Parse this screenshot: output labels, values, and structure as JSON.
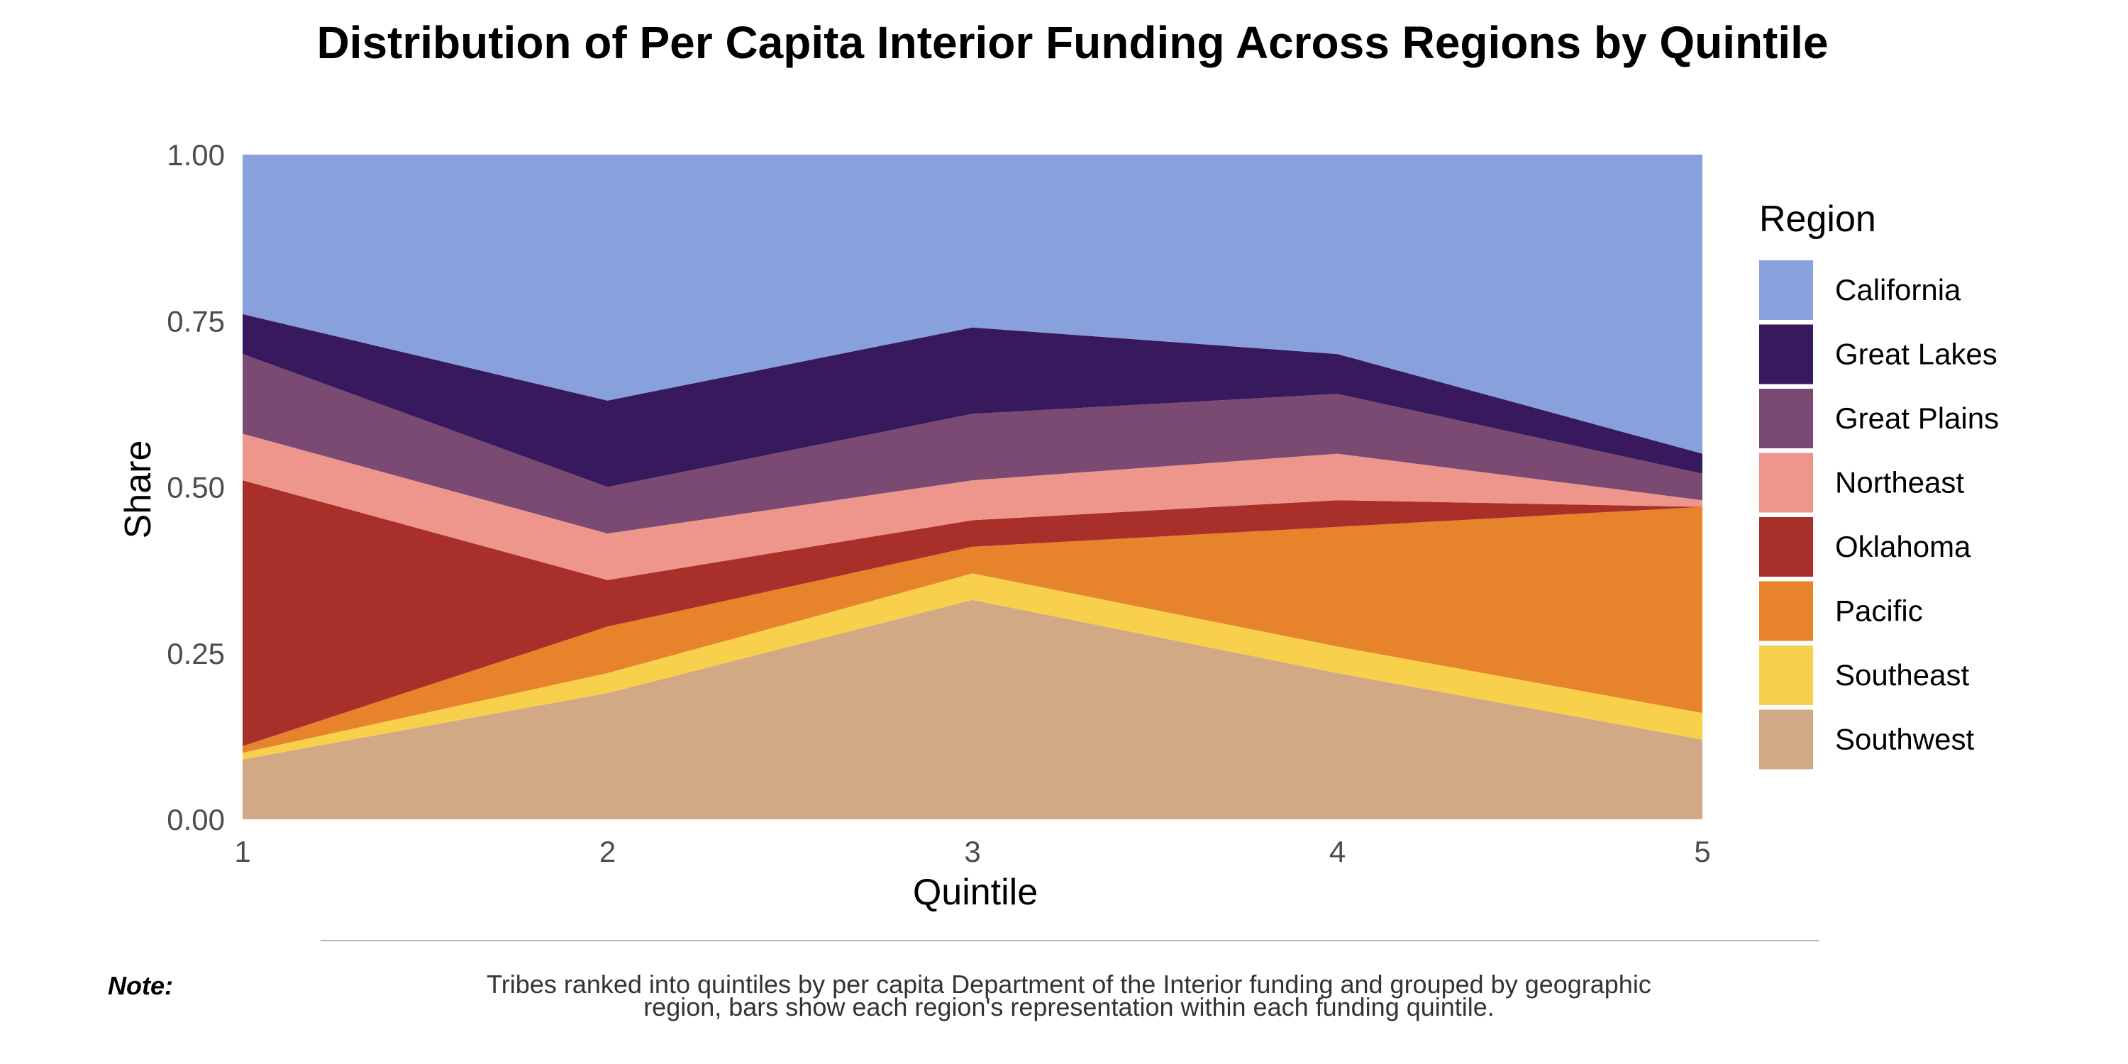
{
  "chart_data": {
    "type": "area",
    "stacked": true,
    "title": "Distribution of Per Capita Interior Funding Across Regions by Quintile",
    "xlabel": "Quintile",
    "ylabel": "Share",
    "x": [
      1,
      2,
      3,
      4,
      5
    ],
    "x_tick_labels": [
      "1",
      "2",
      "3",
      "4",
      "5"
    ],
    "y_tick_labels": [
      "0.00",
      "0.25",
      "0.50",
      "0.75",
      "1.00"
    ],
    "ylim": [
      0,
      1
    ],
    "grid": false,
    "legend_title": "Region",
    "legend_position": "right",
    "series": [
      {
        "name": "Southwest",
        "color": "#D2A985",
        "values": [
          0.09,
          0.19,
          0.33,
          0.22,
          0.12
        ]
      },
      {
        "name": "Southeast",
        "color": "#F9D04B",
        "values": [
          0.01,
          0.03,
          0.04,
          0.04,
          0.04
        ]
      },
      {
        "name": "Pacific",
        "color": "#E6832B",
        "values": [
          0.01,
          0.07,
          0.04,
          0.18,
          0.31
        ]
      },
      {
        "name": "Oklahoma",
        "color": "#A9302A",
        "values": [
          0.4,
          0.07,
          0.04,
          0.04,
          0.0
        ]
      },
      {
        "name": "Northeast",
        "color": "#EE968C",
        "values": [
          0.07,
          0.07,
          0.06,
          0.07,
          0.01
        ]
      },
      {
        "name": "Great Plains",
        "color": "#7A4A72",
        "values": [
          0.12,
          0.07,
          0.1,
          0.09,
          0.04
        ]
      },
      {
        "name": "Great Lakes",
        "color": "#38195E",
        "values": [
          0.06,
          0.13,
          0.13,
          0.06,
          0.03
        ]
      },
      {
        "name": "California",
        "color": "#88A0DB",
        "values": [
          0.24,
          0.37,
          0.26,
          0.3,
          0.45
        ]
      }
    ],
    "legend_order": [
      "California",
      "Great Lakes",
      "Great Plains",
      "Northeast",
      "Oklahoma",
      "Pacific",
      "Southeast",
      "Southwest"
    ]
  },
  "note": {
    "label": "Note:",
    "lines": [
      "Tribes ranked into quintiles by per capita Department of the Interior funding and grouped by geographic",
      "region, bars show each region's representation within each funding quintile."
    ]
  }
}
